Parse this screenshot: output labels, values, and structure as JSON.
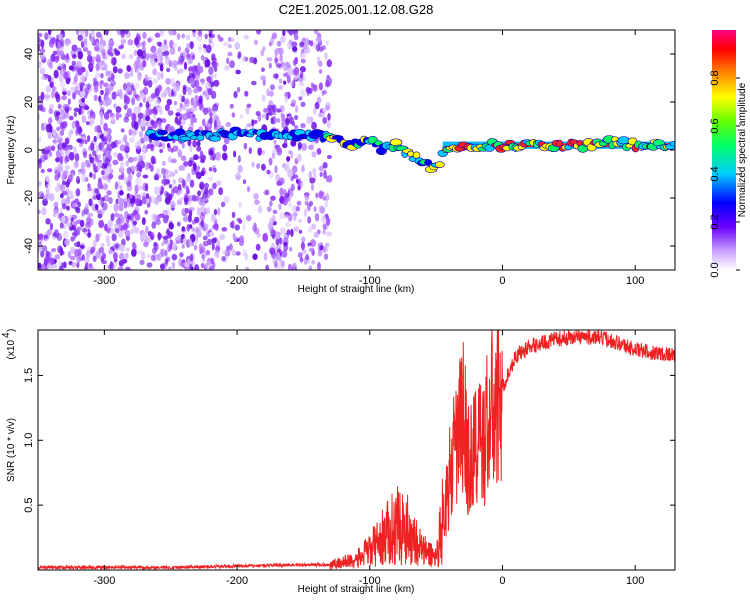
{
  "title": "C2E1.2025.001.12.08.G28",
  "chart_data": [
    {
      "type": "heatmap",
      "xlabel": "Height of straight line (km)",
      "ylabel": "Frequency (Hz)",
      "xlim": [
        -350,
        130
      ],
      "ylim": [
        -50,
        50
      ],
      "xticks": [
        -300,
        -200,
        -100,
        0,
        100
      ],
      "yticks": [
        -40,
        -20,
        0,
        20,
        40
      ],
      "colorbar": {
        "label": "Normalized spectral amplitude",
        "range": [
          0.0,
          1.0
        ],
        "ticks": [
          0.0,
          0.2,
          0.4,
          0.6,
          0.8
        ],
        "tick_labels": [
          "0.0",
          "0.2",
          "0.4",
          "0.6",
          "0.8"
        ],
        "colormap": "white-purple-blue-cyan-green-yellow-orange-red-magenta"
      },
      "dominant_ridge": {
        "x": [
          -265,
          -240,
          -220,
          -200,
          -180,
          -160,
          -140,
          -125,
          -110,
          -100,
          -90,
          -80,
          -70,
          -60,
          -50,
          -45,
          -40,
          -30,
          -20,
          -10,
          0,
          20,
          40,
          60,
          80,
          90,
          100,
          110,
          130
        ],
        "y": [
          6,
          6,
          6,
          7,
          6,
          6,
          6,
          4,
          2,
          4,
          0,
          2,
          -2,
          -5,
          -8,
          -2,
          1,
          2,
          1,
          2,
          2,
          2,
          2,
          2,
          3,
          3,
          2,
          2,
          2
        ]
      },
      "noise_region_upper_x": -130
    },
    {
      "type": "line",
      "xlabel": "Height of straight line (km)",
      "ylabel": "SNR (10 * v/v)",
      "multiplier_label": "(x10",
      "multiplier_exp": "4",
      "xlim": [
        -350,
        130
      ],
      "ylim": [
        0,
        1.85
      ],
      "xticks": [
        -300,
        -200,
        -100,
        0,
        100
      ],
      "yticks": [
        0.5,
        1.0,
        1.5
      ],
      "ytick_labels": [
        "0.5",
        "1.0",
        "1.5"
      ],
      "line_color": "#ee2222",
      "x": [
        -350,
        -300,
        -250,
        -200,
        -160,
        -130,
        -110,
        -100,
        -90,
        -80,
        -70,
        -60,
        -50,
        -45,
        -40,
        -35,
        -30,
        -25,
        -20,
        -15,
        -10,
        -5,
        0,
        10,
        20,
        40,
        60,
        80,
        100,
        110,
        120,
        130
      ],
      "y": [
        0.02,
        0.02,
        0.02,
        0.03,
        0.04,
        0.04,
        0.08,
        0.15,
        0.25,
        0.35,
        0.3,
        0.15,
        0.1,
        0.4,
        0.7,
        0.95,
        1.2,
        0.8,
        1.0,
        0.95,
        1.2,
        1.25,
        1.4,
        1.65,
        1.72,
        1.78,
        1.8,
        1.78,
        1.7,
        1.68,
        1.67,
        1.66
      ]
    }
  ]
}
